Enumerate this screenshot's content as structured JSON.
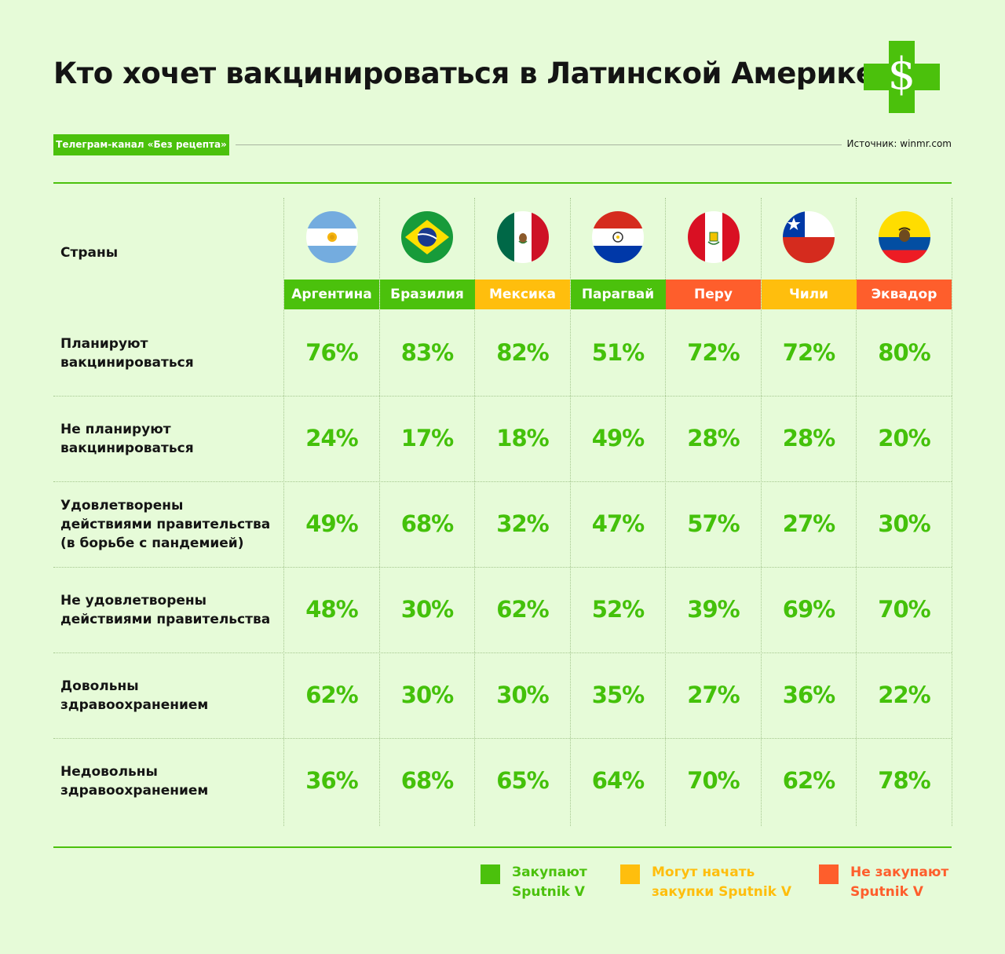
{
  "title": "Кто хочет вакцинироваться в Латинской Америке",
  "logo_icon": "dollar-cross-logo-icon",
  "channel": "Телеграм-канал «Без рецепта»",
  "source": "Источник: winmr.com",
  "colors": {
    "green": "#4bc10c",
    "yellow": "#ffbe0d",
    "red": "#fe5e2c",
    "value_text": "#44c10a",
    "background": "#e6fbd8"
  },
  "row_header": "Страны",
  "chart_data": {
    "type": "table",
    "columns": [
      {
        "label": "Аргентина",
        "status": "green",
        "flag": "argentina-flag-icon"
      },
      {
        "label": "Бразилия",
        "status": "green",
        "flag": "brazil-flag-icon"
      },
      {
        "label": "Мексика",
        "status": "yellow",
        "flag": "mexico-flag-icon"
      },
      {
        "label": "Парагвай",
        "status": "green",
        "flag": "paraguay-flag-icon"
      },
      {
        "label": "Перу",
        "status": "red",
        "flag": "peru-flag-icon"
      },
      {
        "label": "Чили",
        "status": "yellow",
        "flag": "chile-flag-icon"
      },
      {
        "label": "Эквадор",
        "status": "red",
        "flag": "ecuador-flag-icon"
      }
    ],
    "rows": [
      {
        "label": "Планируют\nвакцинироваться",
        "values": [
          "76%",
          "83%",
          "82%",
          "51%",
          "72%",
          "72%",
          "80%"
        ]
      },
      {
        "label": "Не планируют\nвакцинироваться",
        "values": [
          "24%",
          "17%",
          "18%",
          "49%",
          "28%",
          "28%",
          "20%"
        ]
      },
      {
        "label": "Удовлетворены\nдействиями правительства\n(в борьбе с пандемией)",
        "values": [
          "49%",
          "68%",
          "32%",
          "47%",
          "57%",
          "27%",
          "30%"
        ]
      },
      {
        "label": "Не удовлетворены\nдействиями правительства",
        "values": [
          "48%",
          "30%",
          "62%",
          "52%",
          "39%",
          "69%",
          "70%"
        ]
      },
      {
        "label": "Довольны\nздравоохранением",
        "values": [
          "62%",
          "30%",
          "30%",
          "35%",
          "27%",
          "36%",
          "22%"
        ]
      },
      {
        "label": "Недовольны\nздравоохранением",
        "values": [
          "36%",
          "68%",
          "65%",
          "64%",
          "70%",
          "62%",
          "78%"
        ]
      }
    ]
  },
  "legend": [
    {
      "status": "green",
      "text": "Закупают\nSputnik V"
    },
    {
      "status": "yellow",
      "text": "Могут начать\nзакупки Sputnik V"
    },
    {
      "status": "red",
      "text": "Не закупают\nSputnik V"
    }
  ]
}
